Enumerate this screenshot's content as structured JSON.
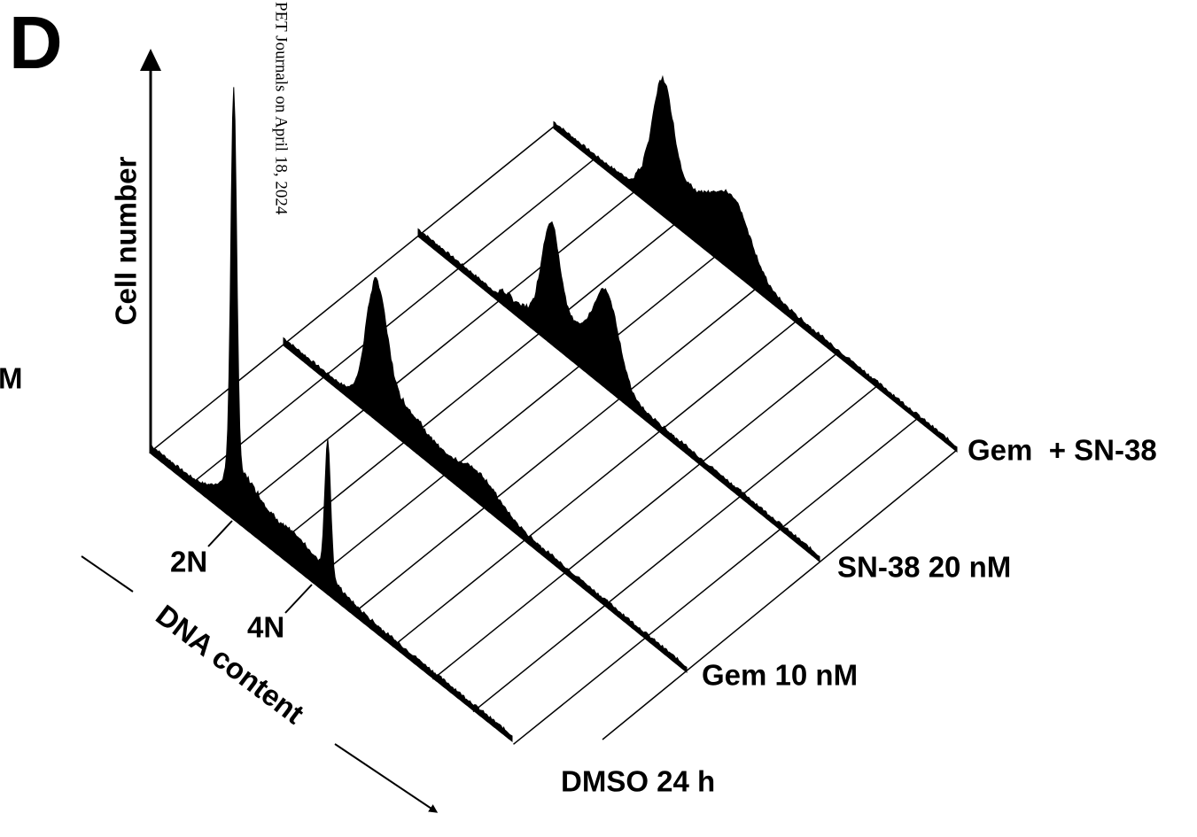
{
  "panel_label": "D",
  "edge_text": "M",
  "y_axis_label": "Cell number",
  "x_axis_label": "DNA content",
  "markers": [
    "2N",
    "4N"
  ],
  "rows": [
    "DMSO 24 h",
    "Gem 10 nM",
    "SN-38 20 nM",
    "Gem  + SN-38"
  ],
  "watermark": "PET Journals on April 18, 2024"
}
